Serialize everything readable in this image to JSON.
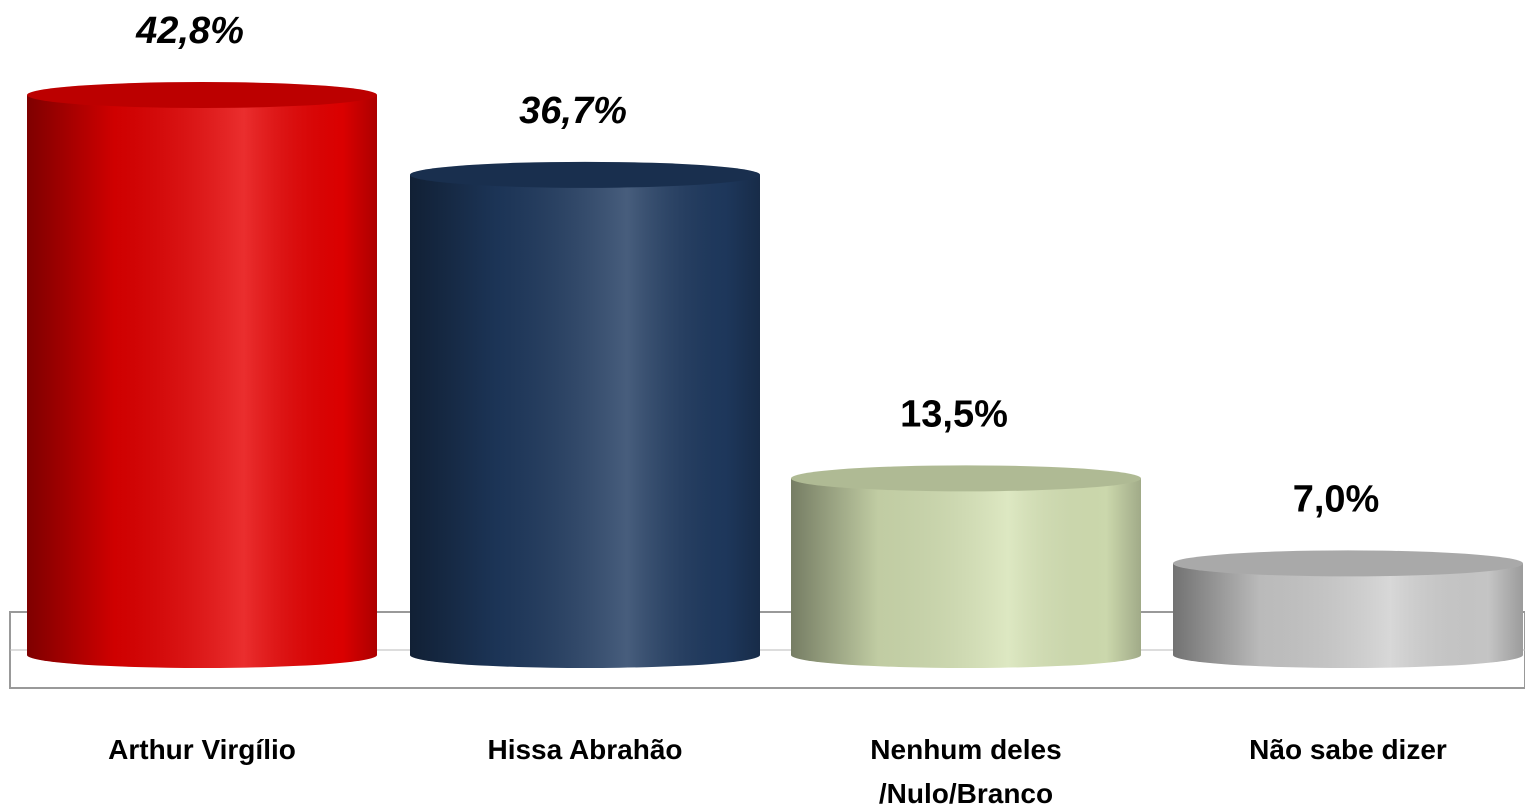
{
  "chart_data": {
    "type": "bar",
    "categories": [
      "Arthur Virgílio",
      "Hissa Abrahão",
      "Nenhum deles /Nulo/Branco",
      "Não sabe dizer"
    ],
    "values": [
      42.8,
      36.7,
      13.5,
      7.0
    ],
    "value_labels": [
      "42,8%",
      "36,7%",
      "13,5%",
      "7,0%"
    ],
    "colors": [
      "#e60000",
      "#1f3a60",
      "#d6e3b5",
      "#cfcfcf"
    ]
  }
}
